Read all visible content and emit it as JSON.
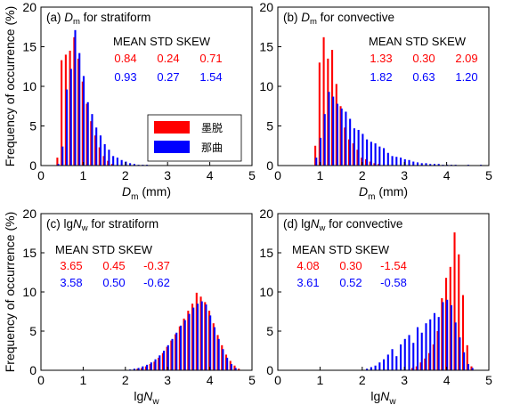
{
  "figure": {
    "ylabel": "Frequency of occurrence (%)",
    "legend_title": "",
    "legend": [
      {
        "name": "墨脱",
        "color": "#ff0000"
      },
      {
        "name": "那曲",
        "color": "#0000ff"
      }
    ],
    "stat_headers": [
      "MEAN",
      "STD",
      "SKEW"
    ]
  },
  "chart_data": [
    {
      "id": "a",
      "type": "bar",
      "title_prefix": "(a) ",
      "title_var": "D",
      "title_sub": "m",
      "title_suffix": " for stratiform",
      "xlabel_var": "D",
      "xlabel_sub": "m",
      "xlabel_suffix": " (mm)",
      "xlim": [
        0,
        5
      ],
      "ylim": [
        0,
        20
      ],
      "xticks": [
        "0",
        "1",
        "2",
        "3",
        "4",
        "5"
      ],
      "yticks": [
        "0",
        "5",
        "10",
        "15",
        "20"
      ],
      "legend_location": "center-right",
      "stats": [
        {
          "station": "墨脱",
          "color": "#ff0000",
          "values": [
            "0.84",
            "0.24",
            "0.71"
          ]
        },
        {
          "station": "那曲",
          "color": "#0000ff",
          "values": [
            "0.93",
            "0.27",
            "1.54"
          ]
        }
      ],
      "bin_width": 0.1,
      "series": [
        {
          "name": "墨脱",
          "color": "#ff0000",
          "x": [
            0.4,
            0.5,
            0.6,
            0.7,
            0.8,
            0.9,
            1.0,
            1.1,
            1.2,
            1.3,
            1.4,
            1.5,
            1.6,
            1.7
          ],
          "values": [
            1.0,
            13.3,
            14.0,
            14.5,
            16.2,
            13.5,
            10.6,
            7.8,
            5.6,
            3.8,
            2.3,
            1.2,
            0.6,
            0.2
          ]
        },
        {
          "name": "那曲",
          "color": "#0000ff",
          "x": [
            0.4,
            0.5,
            0.6,
            0.7,
            0.8,
            0.9,
            1.0,
            1.1,
            1.2,
            1.3,
            1.4,
            1.5,
            1.6,
            1.7,
            1.8,
            1.9,
            2.0,
            2.1,
            2.2,
            2.3,
            2.4,
            2.5
          ],
          "values": [
            0.2,
            2.4,
            9.6,
            12.2,
            17.1,
            14.2,
            11.3,
            8.0,
            6.5,
            4.8,
            3.8,
            2.7,
            2.0,
            1.2,
            1.0,
            0.7,
            0.5,
            0.3,
            0.2,
            0.1,
            0.1,
            0.1
          ]
        }
      ]
    },
    {
      "id": "b",
      "type": "bar",
      "title_prefix": "(b) ",
      "title_var": "D",
      "title_sub": "m",
      "title_suffix": " for convective",
      "xlabel_var": "D",
      "xlabel_sub": "m",
      "xlabel_suffix": " (mm)",
      "xlim": [
        0,
        5
      ],
      "ylim": [
        0,
        20
      ],
      "xticks": [
        "0",
        "1",
        "2",
        "3",
        "4",
        "5"
      ],
      "yticks": [
        "0",
        "5",
        "10",
        "15",
        "20"
      ],
      "stats": [
        {
          "station": "墨脱",
          "color": "#ff0000",
          "values": [
            "1.33",
            "0.30",
            "2.09"
          ]
        },
        {
          "station": "那曲",
          "color": "#0000ff",
          "values": [
            "1.82",
            "0.63",
            "1.20"
          ]
        }
      ],
      "bin_width": 0.1,
      "series": [
        {
          "name": "墨脱",
          "color": "#ff0000",
          "x": [
            0.9,
            1.0,
            1.1,
            1.2,
            1.3,
            1.4,
            1.5,
            1.6,
            1.7,
            1.8,
            1.9,
            2.0,
            2.1,
            2.2,
            2.3,
            2.4
          ],
          "values": [
            2.5,
            13.0,
            16.2,
            13.5,
            14.6,
            10.3,
            7.5,
            4.8,
            3.3,
            2.8,
            2.0,
            1.0,
            0.8,
            0.5,
            0.3,
            0.2
          ]
        },
        {
          "name": "那曲",
          "color": "#0000ff",
          "x": [
            0.9,
            1.0,
            1.1,
            1.2,
            1.3,
            1.4,
            1.5,
            1.6,
            1.7,
            1.8,
            1.9,
            2.0,
            2.1,
            2.2,
            2.3,
            2.4,
            2.5,
            2.6,
            2.7,
            2.8,
            2.9,
            3.0,
            3.1,
            3.2,
            3.3,
            3.4,
            3.5,
            3.6,
            3.7,
            3.8,
            3.9,
            4.0,
            4.1,
            4.2,
            4.5,
            4.8
          ],
          "values": [
            1.0,
            3.5,
            6.5,
            9.3,
            8.7,
            7.8,
            7.2,
            6.8,
            5.9,
            4.7,
            4.5,
            4.0,
            3.3,
            3.0,
            2.8,
            2.4,
            2.2,
            1.6,
            1.2,
            1.1,
            1.0,
            0.8,
            0.7,
            0.5,
            0.4,
            0.3,
            0.3,
            0.2,
            0.2,
            0.2,
            0.1,
            0.1,
            0.1,
            0.1,
            0.1,
            0.1
          ]
        }
      ]
    },
    {
      "id": "c",
      "type": "bar",
      "title_prefix": "(c) ",
      "title_var_plain": "lg",
      "title_var": "N",
      "title_sub": "w",
      "title_suffix": " for stratiform",
      "xlabel_plain": "lg",
      "xlabel_var": "N",
      "xlabel_sub": "w",
      "xlabel_suffix": "",
      "xlim": [
        0,
        5
      ],
      "ylim": [
        0,
        20
      ],
      "xticks": [
        "0",
        "1",
        "2",
        "3",
        "4",
        "5"
      ],
      "yticks": [
        "0",
        "5",
        "10",
        "15",
        "20"
      ],
      "stats": [
        {
          "station": "墨脱",
          "color": "#ff0000",
          "values": [
            "3.65",
            "0.45",
            "-0.37"
          ]
        },
        {
          "station": "那曲",
          "color": "#0000ff",
          "values": [
            "3.58",
            "0.50",
            "-0.62"
          ]
        }
      ],
      "bin_width": 0.1,
      "series": [
        {
          "name": "墨脱",
          "color": "#ff0000",
          "x": [
            2.3,
            2.4,
            2.5,
            2.6,
            2.7,
            2.8,
            2.9,
            3.0,
            3.1,
            3.2,
            3.3,
            3.4,
            3.5,
            3.6,
            3.7,
            3.8,
            3.9,
            4.0,
            4.1,
            4.2,
            4.3,
            4.4,
            4.5,
            4.6,
            4.7
          ],
          "values": [
            0.2,
            0.3,
            0.5,
            0.8,
            1.1,
            1.6,
            2.2,
            3.0,
            3.8,
            4.6,
            5.6,
            6.6,
            7.6,
            8.5,
            9.9,
            9.4,
            8.7,
            7.6,
            6.0,
            4.5,
            3.2,
            2.0,
            1.2,
            0.6,
            0.2
          ]
        },
        {
          "name": "那曲",
          "color": "#0000ff",
          "x": [
            2.1,
            2.2,
            2.3,
            2.4,
            2.5,
            2.6,
            2.7,
            2.8,
            2.9,
            3.0,
            3.1,
            3.2,
            3.3,
            3.4,
            3.5,
            3.6,
            3.7,
            3.8,
            3.9,
            4.0,
            4.1,
            4.2,
            4.3,
            4.4,
            4.5,
            4.6
          ],
          "values": [
            0.1,
            0.2,
            0.3,
            0.5,
            0.7,
            1.0,
            1.4,
            1.9,
            2.5,
            3.2,
            4.0,
            4.8,
            5.7,
            6.4,
            7.2,
            8.0,
            8.5,
            8.8,
            8.4,
            7.0,
            5.5,
            4.0,
            2.7,
            1.6,
            0.8,
            0.3
          ]
        }
      ]
    },
    {
      "id": "d",
      "type": "bar",
      "title_prefix": "(d) ",
      "title_var_plain": "lg",
      "title_var": "N",
      "title_sub": "w",
      "title_suffix": " for convective",
      "xlabel_plain": "lg",
      "xlabel_var": "N",
      "xlabel_sub": "w",
      "xlabel_suffix": "",
      "xlim": [
        0,
        5
      ],
      "ylim": [
        0,
        20
      ],
      "xticks": [
        "0",
        "1",
        "2",
        "3",
        "4",
        "5"
      ],
      "yticks": [
        "0",
        "5",
        "10",
        "15",
        "20"
      ],
      "stats": [
        {
          "station": "墨脱",
          "color": "#ff0000",
          "values": [
            "4.08",
            "0.30",
            "-1.54"
          ]
        },
        {
          "station": "那曲",
          "color": "#0000ff",
          "values": [
            "3.61",
            "0.52",
            "-0.58"
          ]
        }
      ],
      "bin_width": 0.1,
      "series": [
        {
          "name": "墨脱",
          "color": "#ff0000",
          "x": [
            3.2,
            3.3,
            3.4,
            3.5,
            3.6,
            3.7,
            3.8,
            3.9,
            4.0,
            4.1,
            4.2,
            4.3,
            4.4,
            4.5,
            4.6
          ],
          "values": [
            0.3,
            0.5,
            1.0,
            1.5,
            2.2,
            3.3,
            5.0,
            9.2,
            11.8,
            13.2,
            17.6,
            14.8,
            9.6,
            3.2,
            0.5
          ]
        },
        {
          "name": "那曲",
          "color": "#0000ff",
          "x": [
            2.1,
            2.2,
            2.3,
            2.4,
            2.5,
            2.6,
            2.7,
            2.8,
            2.9,
            3.0,
            3.1,
            3.2,
            3.3,
            3.4,
            3.5,
            3.6,
            3.7,
            3.8,
            3.9,
            4.0,
            4.1,
            4.2,
            4.3,
            4.4,
            4.5,
            4.6
          ],
          "values": [
            0.2,
            0.4,
            0.6,
            1.0,
            1.4,
            2.0,
            2.7,
            1.8,
            3.3,
            4.0,
            4.5,
            3.5,
            5.5,
            4.8,
            6.0,
            6.5,
            7.3,
            6.8,
            8.7,
            9.0,
            8.3,
            6.1,
            4.2,
            2.3,
            0.8,
            0.3
          ]
        }
      ]
    }
  ]
}
